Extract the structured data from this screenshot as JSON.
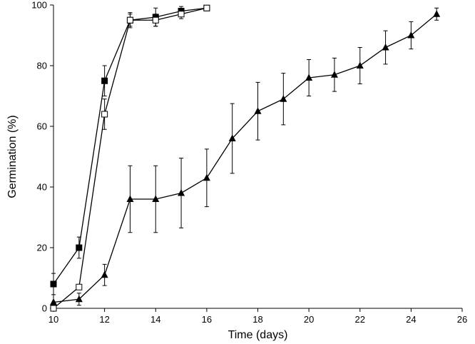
{
  "chart_data": {
    "type": "line",
    "title": "",
    "xlabel": "Time (days)",
    "ylabel": "Germination (%)",
    "xlim": [
      10,
      26
    ],
    "ylim": [
      0,
      100
    ],
    "xticks": [
      10,
      12,
      14,
      16,
      18,
      20,
      22,
      24,
      26
    ],
    "yticks": [
      0,
      20,
      40,
      60,
      80,
      100
    ],
    "grid": false,
    "legend": "none",
    "series": [
      {
        "marker": "filled-square",
        "color": "#000000",
        "x": [
          10,
          11,
          12,
          13,
          14,
          15,
          16
        ],
        "y": [
          8,
          20,
          75,
          95,
          96,
          98,
          99
        ],
        "err": [
          3.5,
          3.5,
          5,
          2.5,
          3,
          1.5,
          0
        ]
      },
      {
        "marker": "open-square",
        "color": "#000000",
        "x": [
          10,
          11,
          12,
          13,
          14,
          15,
          16
        ],
        "y": [
          0,
          7,
          64,
          95,
          95,
          97,
          99
        ],
        "err": [
          0,
          0,
          5,
          2,
          2,
          1.5,
          0
        ]
      },
      {
        "marker": "filled-triangle",
        "color": "#000000",
        "x": [
          10,
          11,
          12,
          13,
          14,
          15,
          16,
          17,
          18,
          19,
          20,
          21,
          22,
          23,
          24,
          25
        ],
        "y": [
          2,
          3,
          11,
          36,
          36,
          38,
          43,
          56,
          65,
          69,
          76,
          77,
          80,
          86,
          90,
          97
        ],
        "err": [
          0,
          2,
          3.5,
          11,
          11,
          11.5,
          9.5,
          11.5,
          9.5,
          8.5,
          6,
          5.5,
          6,
          5.5,
          4.5,
          2
        ]
      }
    ]
  }
}
